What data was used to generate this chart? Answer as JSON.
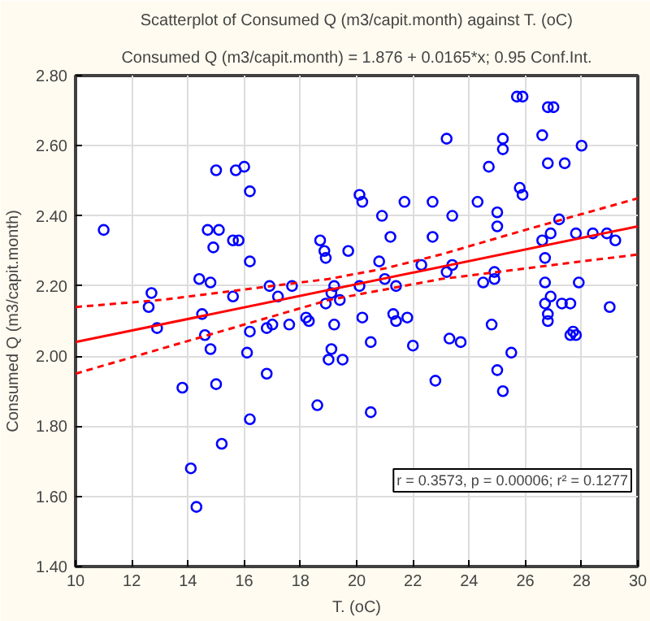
{
  "chart_data": {
    "type": "scatter",
    "title": "Scatterplot of Consumed Q (m3/capit.month) against T. (oC)",
    "subtitle": "Consumed Q (m3/capit.month) = 1.876 + 0.0165*x; 0.95 Conf.Int.",
    "xlabel": "T. (oC)",
    "ylabel": "Consumed Q (m3/capit.month)",
    "xlim": [
      10,
      30
    ],
    "xticks": [
      10,
      12,
      14,
      16,
      18,
      20,
      22,
      24,
      26,
      28,
      30
    ],
    "ylim": [
      1.4,
      2.8
    ],
    "yticks": [
      {
        "value": 1.4,
        "label": "1.40"
      },
      {
        "value": 1.6,
        "label": "1.60"
      },
      {
        "value": 1.8,
        "label": "1.80"
      },
      {
        "value": 2.0,
        "label": "2.00"
      },
      {
        "value": 2.2,
        "label": "2.20"
      },
      {
        "value": 2.4,
        "label": "2.40"
      },
      {
        "value": 2.6,
        "label": "2.60"
      },
      {
        "value": 2.8,
        "label": "2.80"
      }
    ],
    "grid": true,
    "annotations": [
      "r = 0.3573, p = 0.00006; r² = 0.1277"
    ],
    "series": [
      {
        "color": "#0000ff",
        "marker": "circle",
        "x": [
          11.0,
          12.6,
          12.7,
          12.9,
          14.4,
          14.5,
          14.8,
          14.7,
          15.1,
          14.9,
          15.0,
          15.6,
          15.6,
          15.8,
          15.7,
          16.0,
          16.2,
          16.2,
          16.9,
          17.2,
          17.7,
          14.6,
          14.8,
          16.1,
          16.2,
          16.8,
          17.0,
          17.6,
          18.3,
          13.8,
          15.0,
          16.8,
          18.6,
          16.2,
          15.2,
          14.1,
          14.3,
          18.7,
          18.85,
          18.9,
          19.7,
          20.1,
          20.2,
          20.9,
          21.7,
          22.7,
          23.4,
          23.2,
          21.2,
          22.7,
          20.8,
          22.3,
          23.4,
          23.2,
          21.0,
          21.4,
          19.2,
          20.1,
          19.1,
          18.9,
          19.4,
          18.2,
          19.2,
          20.2,
          21.3,
          21.4,
          21.8,
          24.3,
          24.7,
          25.0,
          25.0,
          25.2,
          25.2,
          25.7,
          25.9,
          26.8,
          27.0,
          26.6,
          28.0,
          26.8,
          27.4,
          25.8,
          25.9,
          27.2,
          26.6,
          26.9,
          27.8,
          28.4,
          28.9,
          29.2,
          26.7,
          24.9,
          24.5,
          24.9,
          26.7,
          27.9,
          26.9,
          26.7,
          27.3,
          27.6,
          26.8,
          29.0,
          24.8,
          27.7,
          19.1,
          19.0,
          19.5,
          20.5,
          20.5,
          22.0,
          22.8,
          23.3,
          23.7,
          25.5,
          25.0,
          25.2,
          27.6,
          27.8,
          26.8
        ],
        "values": [
          2.36,
          2.14,
          2.18,
          2.08,
          2.22,
          2.12,
          2.21,
          2.36,
          2.36,
          2.31,
          2.53,
          2.17,
          2.33,
          2.33,
          2.53,
          2.54,
          2.47,
          2.27,
          2.2,
          2.17,
          2.2,
          2.06,
          2.02,
          2.01,
          2.07,
          2.08,
          2.09,
          2.09,
          2.1,
          1.91,
          1.92,
          1.95,
          1.86,
          1.82,
          1.75,
          1.68,
          1.57,
          2.33,
          2.3,
          2.28,
          2.3,
          2.46,
          2.44,
          2.4,
          2.44,
          2.44,
          2.4,
          2.62,
          2.34,
          2.34,
          2.27,
          2.26,
          2.26,
          2.24,
          2.22,
          2.2,
          2.2,
          2.2,
          2.18,
          2.15,
          2.16,
          2.11,
          2.09,
          2.11,
          2.12,
          2.1,
          2.11,
          2.44,
          2.54,
          2.41,
          2.37,
          2.62,
          2.59,
          2.74,
          2.74,
          2.71,
          2.71,
          2.63,
          2.6,
          2.55,
          2.55,
          2.48,
          2.46,
          2.39,
          2.33,
          2.35,
          2.35,
          2.35,
          2.35,
          2.33,
          2.28,
          2.24,
          2.21,
          2.22,
          2.21,
          2.21,
          2.17,
          2.15,
          2.15,
          2.15,
          2.12,
          2.14,
          2.09,
          2.07,
          2.02,
          1.99,
          1.99,
          2.04,
          1.84,
          2.03,
          1.93,
          2.05,
          2.04,
          2.01,
          1.96,
          1.9,
          2.06,
          2.06,
          2.1
        ]
      },
      {
        "type": "line",
        "color": "#ff0000",
        "line_style": "solid",
        "x": [
          10,
          30
        ],
        "values": [
          2.04,
          2.37
        ]
      },
      {
        "type": "line",
        "color": "#ff0000",
        "line_style": "dashed",
        "x": [
          10,
          13,
          16,
          19,
          21,
          23,
          26,
          30
        ],
        "values": [
          2.14,
          2.16,
          2.19,
          2.22,
          2.25,
          2.29,
          2.36,
          2.45
        ]
      },
      {
        "type": "line",
        "color": "#ff0000",
        "line_style": "dashed",
        "x": [
          10,
          13,
          16,
          19,
          21,
          23,
          26,
          30
        ],
        "values": [
          1.95,
          2.02,
          2.09,
          2.16,
          2.19,
          2.22,
          2.25,
          2.29
        ]
      }
    ]
  }
}
